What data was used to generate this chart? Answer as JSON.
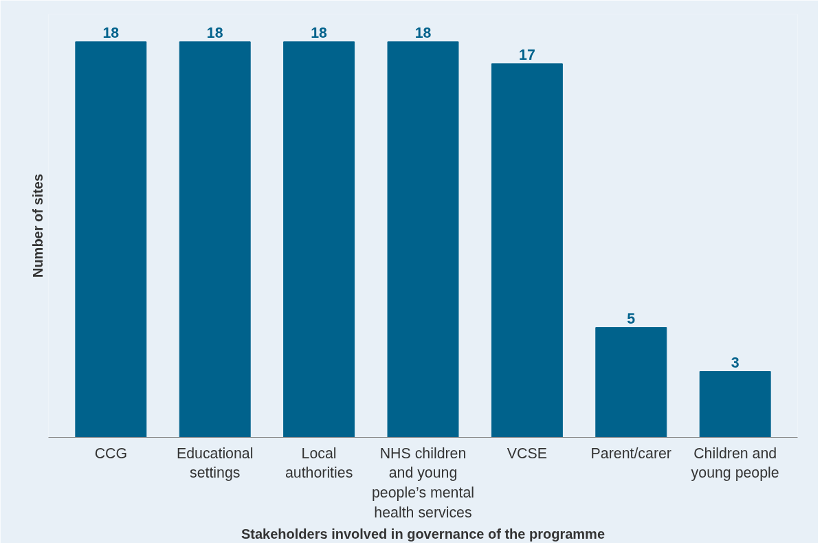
{
  "chart_data": {
    "type": "bar",
    "xlabel": "Stakeholders involved in governance of the programme",
    "ylabel": "Number of sites",
    "categories": [
      "CCG",
      "Educational settings",
      "Local authorities",
      "NHS children and young people’s mental health services",
      "VCSE",
      "Parent/carer",
      "Children and young people"
    ],
    "values": [
      18,
      18,
      18,
      18,
      17,
      5,
      3
    ],
    "color": "#00628c",
    "data_labels": true,
    "tick_labels": "x",
    "grid": false
  }
}
